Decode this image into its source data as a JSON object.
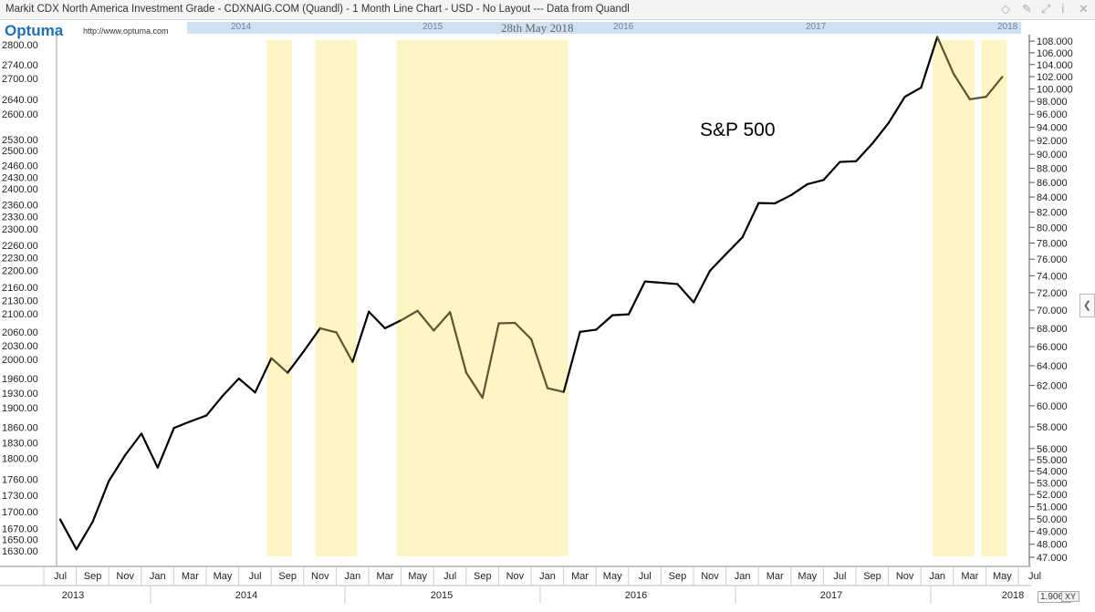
{
  "window": {
    "title": "Markit CDX North America Investment Grade - CDXNAIG.COM (Quandl) - 1 Month Line Chart - USD - No Layout --- Data from Quandl"
  },
  "toolbar_icons": [
    "diamond-icon",
    "pin-icon",
    "chart-icon",
    "info-icon",
    "close-icon"
  ],
  "logo": {
    "text": "Optuma",
    "url": "http://www.optuma.com"
  },
  "navigator": {
    "date_label": "28th May 2018",
    "year_labels": [
      "2014",
      "2015",
      "2016",
      "2017",
      "2018"
    ]
  },
  "footer": {
    "value_readout": "1.9069",
    "xy_label": "XY"
  },
  "chart_data": {
    "type": "line",
    "title": "S&P 500",
    "x": [
      "Jul 2013",
      "Aug 2013",
      "Sep 2013",
      "Oct 2013",
      "Nov 2013",
      "Dec 2013",
      "Jan 2014",
      "Feb 2014",
      "Mar 2014",
      "Apr 2014",
      "May 2014",
      "Jun 2014",
      "Jul 2014",
      "Aug 2014",
      "Sep 2014",
      "Oct 2014",
      "Nov 2014",
      "Dec 2014",
      "Jan 2015",
      "Feb 2015",
      "Mar 2015",
      "Apr 2015",
      "May 2015",
      "Jun 2015",
      "Jul 2015",
      "Aug 2015",
      "Sep 2015",
      "Oct 2015",
      "Nov 2015",
      "Dec 2015",
      "Jan 2016",
      "Feb 2016",
      "Mar 2016",
      "Apr 2016",
      "May 2016",
      "Jun 2016",
      "Jul 2016",
      "Aug 2016",
      "Sep 2016",
      "Oct 2016",
      "Nov 2016",
      "Dec 2016",
      "Jan 2017",
      "Feb 2017",
      "Mar 2017",
      "Apr 2017",
      "May 2017",
      "Jun 2017",
      "Jul 2017",
      "Aug 2017",
      "Sep 2017",
      "Oct 2017",
      "Nov 2017",
      "Dec 2017",
      "Jan 2018",
      "Feb 2018",
      "Mar 2018",
      "Apr 2018",
      "May 2018"
    ],
    "series": [
      {
        "values": [
          1686,
          1633,
          1682,
          1757,
          1806,
          1848,
          1782,
          1859,
          1872,
          1884,
          1924,
          1960,
          1931,
          2003,
          1972,
          2018,
          2068,
          2059,
          1995,
          2105,
          2068,
          2086,
          2107,
          2063,
          2104,
          1972,
          1920,
          2079,
          2080,
          2044,
          1940,
          1932,
          2060,
          2065,
          2097,
          2099,
          2174,
          2171,
          2168,
          2126,
          2199,
          2239,
          2279,
          2364,
          2363,
          2384,
          2412,
          2423,
          2470,
          2472,
          2519,
          2575,
          2648,
          2674,
          2823,
          2714,
          2641,
          2648,
          2705
        ]
      }
    ],
    "highlight_periods": [
      [
        "Aug 2014",
        "Sep 2014"
      ],
      [
        "Nov 2014",
        "Jan 2015"
      ],
      [
        "Apr 2015",
        "Feb 2016"
      ],
      [
        "Jan 2018",
        "Mar 2018"
      ],
      [
        "Apr 2018",
        "May 2018"
      ]
    ],
    "left_axis": {
      "ticks": [
        2800,
        2740,
        2700,
        2640,
        2600,
        2530,
        2500,
        2460,
        2430,
        2400,
        2360,
        2330,
        2300,
        2260,
        2230,
        2200,
        2160,
        2130,
        2100,
        2060,
        2030,
        2000,
        1960,
        1930,
        1900,
        1860,
        1830,
        1800,
        1760,
        1730,
        1700,
        1670,
        1650,
        1630
      ],
      "labels": [
        "2800.00",
        "2740.00",
        "2700.00",
        "2640.00",
        "2600.00",
        "2530.00",
        "2500.00",
        "2460.00",
        "2430.00",
        "2400.00",
        "2360.00",
        "2330.00",
        "2300.00",
        "2260.00",
        "2230.00",
        "2200.00",
        "2160.00",
        "2130.00",
        "2100.00",
        "2060.00",
        "2030.00",
        "2000.00",
        "1960.00",
        "1930.00",
        "1900.00",
        "1860.00",
        "1830.00",
        "1800.00",
        "1760.00",
        "1730.00",
        "1700.00",
        "1670.00",
        "1650.00",
        "1630.00"
      ],
      "scale": "log",
      "ylim": [
        1625,
        2838
      ]
    },
    "right_axis": {
      "ticks": [
        108,
        106,
        104,
        102,
        100,
        98,
        96,
        94,
        92,
        90,
        88,
        86,
        84,
        82,
        80,
        78,
        76,
        74,
        72,
        70,
        68,
        66,
        64,
        62,
        60,
        58,
        56,
        55,
        54,
        53,
        52,
        51,
        50,
        49,
        48,
        47
      ],
      "labels": [
        "108.000",
        "106.000",
        "104.000",
        "102.000",
        "100.000",
        "98.000",
        "96.000",
        "94.000",
        "92.000",
        "90.000",
        "88.000",
        "86.000",
        "84.000",
        "82.000",
        "80.000",
        "78.000",
        "76.000",
        "74.000",
        "72.000",
        "70.000",
        "68.000",
        "66.000",
        "64.000",
        "62.000",
        "60.000",
        "58.000",
        "56.000",
        "55.000",
        "54.000",
        "53.000",
        "52.000",
        "51.000",
        "50.000",
        "49.000",
        "48.000",
        "47.000"
      ],
      "scale": "log"
    },
    "month_ticks": [
      "Jul",
      "Sep",
      "Nov",
      "Jan",
      "Mar",
      "May",
      "Jul",
      "Sep",
      "Nov",
      "Jan",
      "Mar",
      "May",
      "Jul",
      "Sep",
      "Nov",
      "Jan",
      "Mar",
      "May",
      "Jul",
      "Sep",
      "Nov",
      "Jan",
      "Mar",
      "May",
      "Jul",
      "Sep",
      "Nov",
      "Jan",
      "Mar",
      "May",
      "Jul"
    ],
    "year_ticks": [
      "2013",
      "2014",
      "2015",
      "2016",
      "2017",
      "2018"
    ],
    "colors": {
      "line": "#000000",
      "highlight": "#fdf5c4",
      "highlight_line": "#5c5530"
    }
  }
}
